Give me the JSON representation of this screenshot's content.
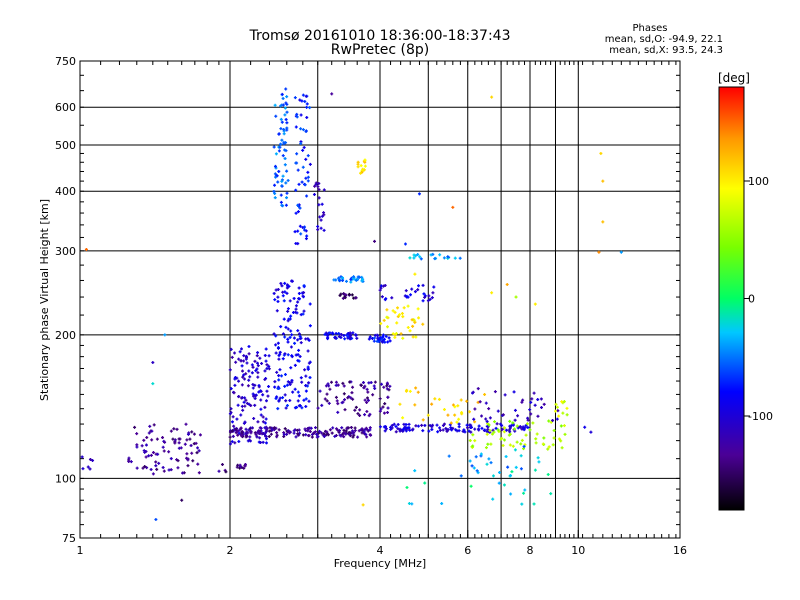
{
  "header": {
    "title_line1": "Tromsø 20161010 18:36:00-18:37:43",
    "title_line2": "RwPretec (8p)"
  },
  "stats": {
    "heading": "Phases",
    "line_o": "mean, sd,O: -94.9, 22.1",
    "line_x": "mean, sd,X:  93.5, 24.3"
  },
  "colorbar": {
    "label": "[deg]",
    "tick_labels": [
      "100",
      "0",
      "-100"
    ],
    "tick_values": [
      100,
      0,
      -100
    ],
    "range": [
      -180,
      180
    ]
  },
  "colors": {
    "background": "#ffffff",
    "grid": "#000000"
  },
  "chart_data": {
    "type": "scatter",
    "title": "Tromsø 20161010 18:36:00-18:37:43",
    "subtitle": "RwPretec (8p)",
    "xlabel": "Frequency [MHz]",
    "ylabel": "Stationary phase Virtual Height [km]",
    "x_scale": "log",
    "y_scale": "log",
    "xlim": [
      1,
      16
    ],
    "ylim": [
      75,
      750
    ],
    "x_ticks": [
      1,
      2,
      4,
      6,
      8,
      10,
      16
    ],
    "x_tick_labels": [
      "1",
      "2",
      "4",
      "6",
      "8",
      "10",
      "16"
    ],
    "x_minor_ticks": [
      3,
      5,
      7,
      9
    ],
    "y_ticks": [
      75,
      100,
      200,
      300,
      400,
      500,
      600,
      750
    ],
    "y_tick_labels": [
      "75",
      "100",
      "200",
      "300",
      "400",
      "500",
      "600",
      "750"
    ],
    "grid": true,
    "color_variable": "phase [deg]",
    "color_range": [
      -180,
      180
    ],
    "clusters": [
      {
        "x": [
          1.0,
          1.06
        ],
        "y": [
          103,
          112
        ],
        "phase": -115,
        "n": 6
      },
      {
        "x": [
          1.25,
          1.75
        ],
        "y": [
          102,
          130
        ],
        "phase": -130,
        "n": 90
      },
      {
        "x": [
          1.9,
          2.15
        ],
        "y": [
          103,
          108
        ],
        "phase": -140,
        "n": 14
      },
      {
        "x": [
          2.0,
          2.4
        ],
        "y": [
          118,
          190
        ],
        "phase": -105,
        "n": 150
      },
      {
        "x": [
          2.0,
          3.9
        ],
        "y": [
          122,
          128
        ],
        "phase": -130,
        "n": 180
      },
      {
        "x": [
          2.45,
          2.9
        ],
        "y": [
          200,
          260
        ],
        "phase": -90,
        "n": 60
      },
      {
        "x": [
          2.45,
          2.9
        ],
        "y": [
          140,
          200
        ],
        "phase": -85,
        "n": 100
      },
      {
        "x": [
          2.45,
          2.62
        ],
        "y": [
          370,
          660
        ],
        "phase": -55,
        "n": 70
      },
      {
        "x": [
          2.7,
          2.9
        ],
        "y": [
          310,
          640
        ],
        "phase": -75,
        "n": 60
      },
      {
        "x": [
          2.95,
          3.1
        ],
        "y": [
          330,
          420
        ],
        "phase": -110,
        "n": 20
      },
      {
        "x": [
          3.1,
          3.6
        ],
        "y": [
          196,
          202
        ],
        "phase": -90,
        "n": 40
      },
      {
        "x": [
          3.2,
          3.7
        ],
        "y": [
          258,
          265
        ],
        "phase": -50,
        "n": 30
      },
      {
        "x": [
          3.3,
          3.6
        ],
        "y": [
          238,
          244
        ],
        "phase": -145,
        "n": 15
      },
      {
        "x": [
          3.6,
          3.75
        ],
        "y": [
          420,
          470
        ],
        "phase": 110,
        "n": 15
      },
      {
        "x": [
          3.0,
          4.2
        ],
        "y": [
          135,
          160
        ],
        "phase": -130,
        "n": 80
      },
      {
        "x": [
          3.8,
          4.2
        ],
        "y": [
          193,
          200
        ],
        "phase": -80,
        "n": 30
      },
      {
        "x": [
          4.0,
          4.9
        ],
        "y": [
          195,
          230
        ],
        "phase": 100,
        "n": 35
      },
      {
        "x": [
          4.0,
          5.2
        ],
        "y": [
          235,
          255
        ],
        "phase": -95,
        "n": 30
      },
      {
        "x": [
          4.4,
          5.8
        ],
        "y": [
          288,
          295
        ],
        "phase": -40,
        "n": 18
      },
      {
        "x": [
          4.0,
          8.0
        ],
        "y": [
          125,
          130
        ],
        "phase": -100,
        "n": 120
      },
      {
        "x": [
          4.3,
          6.5
        ],
        "y": [
          130,
          155
        ],
        "phase": 110,
        "n": 30
      },
      {
        "x": [
          6.0,
          9.5
        ],
        "y": [
          115,
          132
        ],
        "phase": 60,
        "n": 60
      },
      {
        "x": [
          6.0,
          9.3
        ],
        "y": [
          130,
          155
        ],
        "phase": -110,
        "n": 40
      },
      {
        "x": [
          8.9,
          9.5
        ],
        "y": [
          135,
          145
        ],
        "phase": 80,
        "n": 10
      },
      {
        "x": [
          4.5,
          9.0
        ],
        "y": [
          88,
          105
        ],
        "phase": -20,
        "n": 20
      },
      {
        "x": [
          5.5,
          8.5
        ],
        "y": [
          100,
          118
        ],
        "phase": -40,
        "n": 25
      }
    ],
    "points": [
      {
        "x": 3.2,
        "y": 640,
        "phase": -130
      },
      {
        "x": 5.6,
        "y": 370,
        "phase": 150
      },
      {
        "x": 6.7,
        "y": 630,
        "phase": 110
      },
      {
        "x": 11.1,
        "y": 480,
        "phase": 110
      },
      {
        "x": 11.2,
        "y": 420,
        "phase": 120
      },
      {
        "x": 11.2,
        "y": 345,
        "phase": 120
      },
      {
        "x": 11.0,
        "y": 298,
        "phase": 140
      },
      {
        "x": 12.2,
        "y": 298,
        "phase": -40
      },
      {
        "x": 4.8,
        "y": 395,
        "phase": -70
      },
      {
        "x": 1.03,
        "y": 302,
        "phase": 150
      },
      {
        "x": 1.42,
        "y": 82,
        "phase": -60
      },
      {
        "x": 1.6,
        "y": 90,
        "phase": -150
      },
      {
        "x": 1.4,
        "y": 175,
        "phase": -110
      },
      {
        "x": 1.4,
        "y": 158,
        "phase": -20
      },
      {
        "x": 1.48,
        "y": 200,
        "phase": -40
      },
      {
        "x": 3.7,
        "y": 88,
        "phase": 110
      },
      {
        "x": 10.3,
        "y": 128,
        "phase": -90
      },
      {
        "x": 10.6,
        "y": 125,
        "phase": -100
      },
      {
        "x": 4.5,
        "y": 310,
        "phase": -70
      },
      {
        "x": 3.9,
        "y": 314,
        "phase": -140
      },
      {
        "x": 4.7,
        "y": 268,
        "phase": 100
      },
      {
        "x": 7.2,
        "y": 255,
        "phase": 130
      },
      {
        "x": 7.5,
        "y": 240,
        "phase": 60
      },
      {
        "x": 8.2,
        "y": 232,
        "phase": 100
      },
      {
        "x": 6.7,
        "y": 245,
        "phase": 100
      }
    ]
  }
}
